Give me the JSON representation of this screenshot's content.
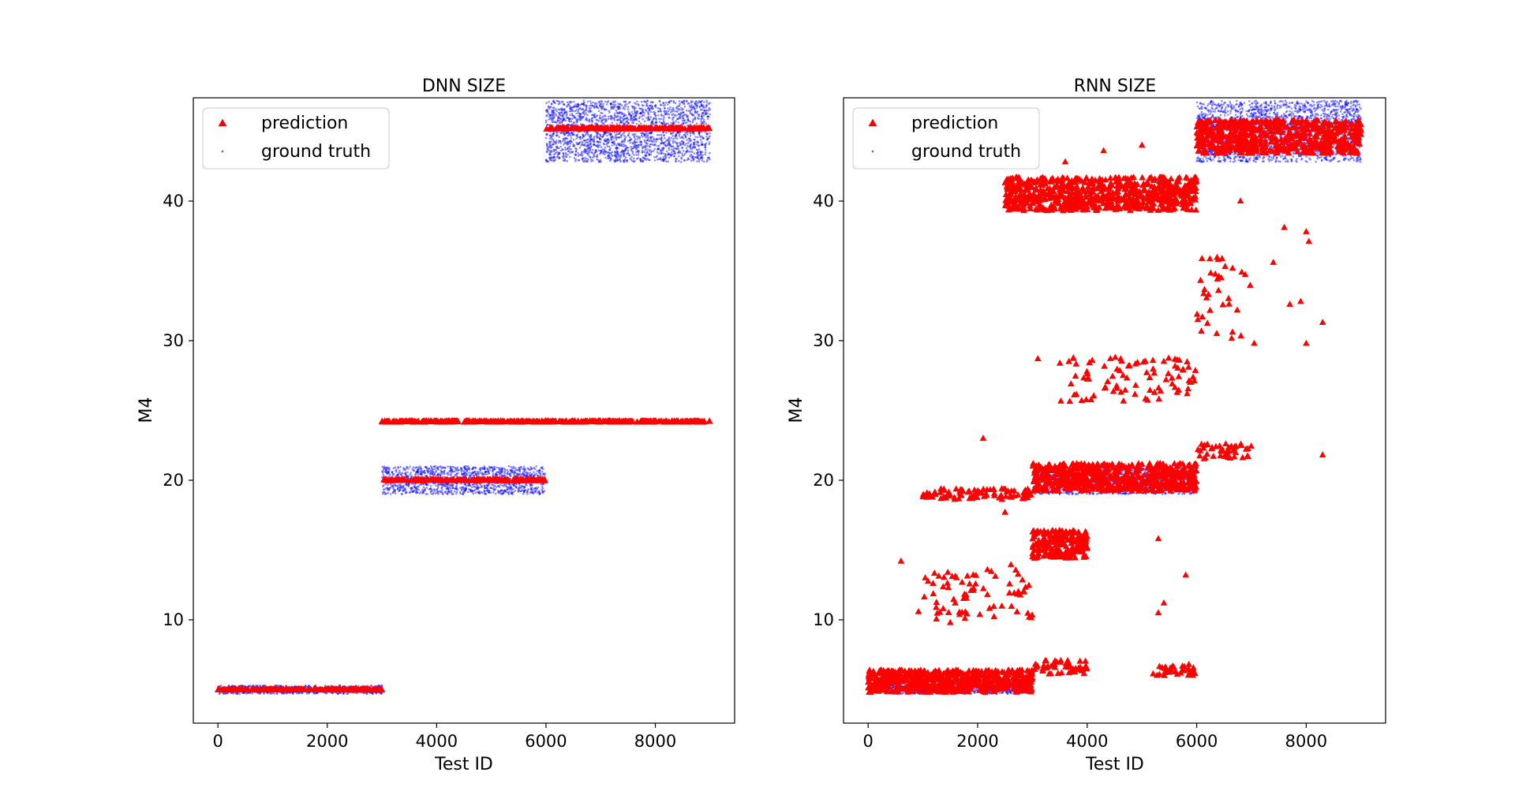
{
  "figure": {
    "background": "#ffffff"
  },
  "colors": {
    "prediction": "#ff0000",
    "ground_truth": "#0000ff",
    "axes": "#000000",
    "legend_border": "#cccccc"
  },
  "chart_data": [
    {
      "type": "scatter",
      "title": "DNN SIZE",
      "xlabel": "Test ID",
      "ylabel": "M4",
      "xlim": [
        -450,
        9450
      ],
      "ylim": [
        2.6,
        47.4
      ],
      "xticks": [
        0,
        2000,
        4000,
        6000,
        8000
      ],
      "yticks": [
        10,
        20,
        30,
        40
      ],
      "grid": false,
      "legend": {
        "placement": "top-left",
        "entries": [
          {
            "label": "prediction",
            "marker": "triangle",
            "color": "#ff0000"
          },
          {
            "label": "ground truth",
            "marker": "dot",
            "color": "#0000ff"
          }
        ]
      },
      "series": [
        {
          "name": "ground truth",
          "marker": "dot",
          "color": "#0000ff",
          "groups": [
            {
              "x_range": [
                0,
                3000
              ],
              "y_center": 5.0,
              "y_spread": 0.3
            },
            {
              "x_range": [
                3000,
                6000
              ],
              "y_center": 20.0,
              "y_spread": 1.0
            },
            {
              "x_range": [
                6000,
                9000
              ],
              "y_center": 45.0,
              "y_spread": 2.2
            }
          ]
        },
        {
          "name": "prediction",
          "marker": "triangle",
          "color": "#ff0000",
          "groups": [
            {
              "x_range": [
                0,
                3000
              ],
              "y_center": 5.0,
              "y_spread": 0.05
            },
            {
              "x_range": [
                3000,
                6000
              ],
              "y_center": 20.0,
              "y_spread": 0.05
            },
            {
              "x_range": [
                3000,
                9000
              ],
              "y_center": 24.2,
              "y_spread": 0.05
            },
            {
              "x_range": [
                6000,
                9000
              ],
              "y_center": 45.2,
              "y_spread": 0.05
            }
          ]
        }
      ]
    },
    {
      "type": "scatter",
      "title": "RNN SIZE",
      "xlabel": "Test ID",
      "ylabel": "M4",
      "xlim": [
        -450,
        9450
      ],
      "ylim": [
        2.6,
        47.4
      ],
      "xticks": [
        0,
        2000,
        4000,
        6000,
        8000
      ],
      "yticks": [
        10,
        20,
        30,
        40
      ],
      "grid": false,
      "legend": {
        "placement": "top-left",
        "entries": [
          {
            "label": "prediction",
            "marker": "triangle",
            "color": "#ff0000"
          },
          {
            "label": "ground truth",
            "marker": "dot",
            "color": "#0000ff"
          }
        ]
      },
      "series": [
        {
          "name": "ground truth",
          "marker": "dot",
          "color": "#0000ff",
          "groups": [
            {
              "x_range": [
                0,
                3000
              ],
              "y_center": 5.0,
              "y_spread": 0.3
            },
            {
              "x_range": [
                3000,
                6000
              ],
              "y_center": 20.0,
              "y_spread": 1.0
            },
            {
              "x_range": [
                6000,
                9000
              ],
              "y_center": 45.0,
              "y_spread": 2.2
            }
          ]
        },
        {
          "name": "prediction",
          "marker": "triangle",
          "color": "#ff0000",
          "groups": [
            {
              "x_range": [
                0,
                3000
              ],
              "y_center": 5.6,
              "y_spread": 0.8
            },
            {
              "x_range": [
                3000,
                6000
              ],
              "y_center": 20.2,
              "y_spread": 1.0
            },
            {
              "x_range": [
                6000,
                9000
              ],
              "y_center": 44.6,
              "y_spread": 1.2
            },
            {
              "x_range": [
                3000,
                4000
              ],
              "y_center": 6.6,
              "y_spread": 0.5
            },
            {
              "x_range": [
                5200,
                6000
              ],
              "y_center": 6.4,
              "y_spread": 0.4
            },
            {
              "x_range": [
                900,
                3000
              ],
              "y_center": 12.0,
              "y_spread": 2.0
            },
            {
              "x_range": [
                3000,
                4000
              ],
              "y_center": 15.4,
              "y_spread": 1.0
            },
            {
              "x_range": [
                1000,
                3000
              ],
              "y_center": 19.0,
              "y_spread": 0.4
            },
            {
              "x_range": [
                6000,
                7000
              ],
              "y_center": 22.0,
              "y_spread": 0.6
            },
            {
              "x_range": [
                3500,
                6000
              ],
              "y_center": 27.2,
              "y_spread": 1.6
            },
            {
              "x_range": [
                6000,
                7000
              ],
              "y_center": 33.0,
              "y_spread": 3.0
            },
            {
              "x_range": [
                2500,
                6000
              ],
              "y_center": 40.5,
              "y_spread": 1.2
            }
          ],
          "points": [
            [
              600,
              14.2
            ],
            [
              1500,
              9.8
            ],
            [
              2100,
              23.0
            ],
            [
              2500,
              17.7
            ],
            [
              3100,
              28.7
            ],
            [
              3600,
              42.8
            ],
            [
              4300,
              43.6
            ],
            [
              5000,
              44.0
            ],
            [
              5300,
              15.8
            ],
            [
              5400,
              11.2
            ],
            [
              5300,
              10.5
            ],
            [
              5800,
              13.2
            ],
            [
              7400,
              35.6
            ],
            [
              7600,
              38.1
            ],
            [
              7700,
              32.6
            ],
            [
              7900,
              32.8
            ],
            [
              8000,
              37.8
            ],
            [
              8000,
              29.8
            ],
            [
              8050,
              37.1
            ],
            [
              8300,
              31.3
            ],
            [
              8300,
              21.8
            ],
            [
              6800,
              40.0
            ],
            [
              7050,
              29.8
            ]
          ]
        }
      ]
    }
  ]
}
